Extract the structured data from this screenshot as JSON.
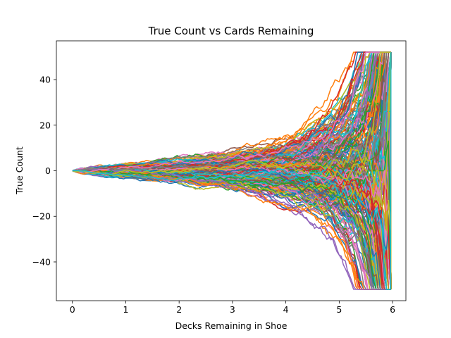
{
  "chart_data": {
    "type": "line",
    "title": "True Count vs Cards Remaining",
    "xlabel": "Decks Remaining in Shoe",
    "ylabel": "True Count",
    "xlim": [
      -0.3,
      6.25
    ],
    "ylim": [
      -57,
      57
    ],
    "xticks": [
      0,
      1,
      2,
      3,
      4,
      5,
      6
    ],
    "yticks": [
      -40,
      -20,
      0,
      20,
      40
    ],
    "xtick_labels": [
      "0",
      "1",
      "2",
      "3",
      "4",
      "5",
      "6"
    ],
    "ytick_labels": [
      "−40",
      "−20",
      "0",
      "20",
      "40"
    ],
    "grid": false,
    "legend": "none",
    "series_count": 300,
    "x_range": [
      0,
      6
    ],
    "clip_range": [
      -52,
      52
    ],
    "envelope": {
      "x": [
        0,
        1,
        2,
        3,
        4,
        4.5,
        5,
        5.5,
        5.8,
        5.95
      ],
      "upper": [
        0,
        4,
        7,
        11,
        14,
        18,
        22,
        30,
        45,
        52
      ],
      "lower": [
        0,
        -4,
        -7,
        -11,
        -14,
        -17,
        -22,
        -30,
        -45,
        -52
      ]
    },
    "colors": [
      "#1f77b4",
      "#ff7f0e",
      "#2ca02c",
      "#d62728",
      "#9467bd",
      "#8c564b",
      "#e377c2",
      "#7f7f7f",
      "#bcbd22",
      "#17becf"
    ]
  }
}
